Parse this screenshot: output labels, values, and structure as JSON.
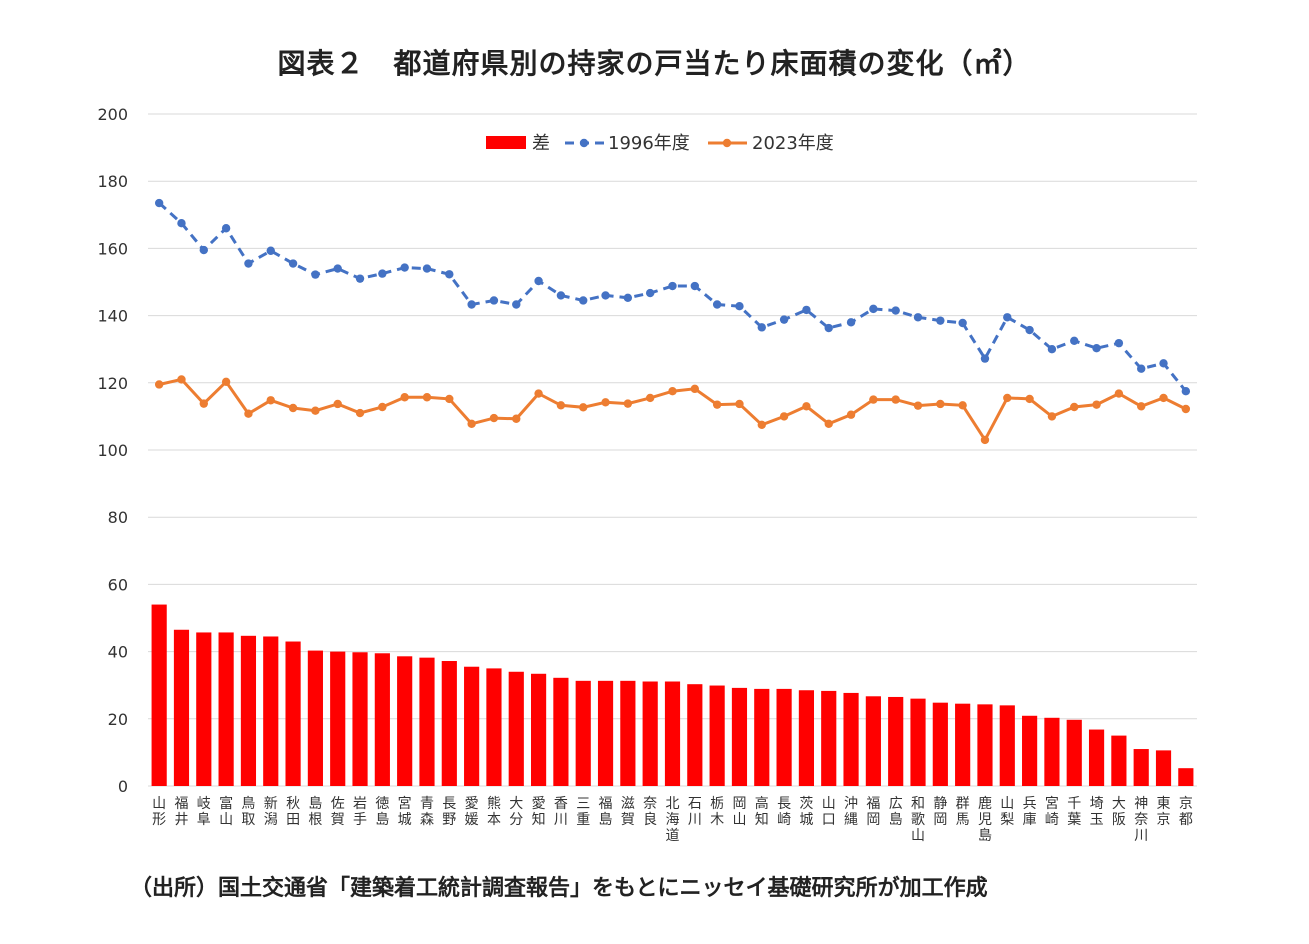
{
  "title": "図表２　都道府県別の持家の戸当たり床面積の変化（㎡）",
  "source": "（出所）国土交通省「建築着工統計調査報告」をもとにニッセイ基礎研究所が加工作成",
  "chart_data": {
    "type": "bar",
    "categories": [
      "山形",
      "福井",
      "岐阜",
      "富山",
      "鳥取",
      "新潟",
      "秋田",
      "島根",
      "佐賀",
      "岩手",
      "徳島",
      "宮城",
      "青森",
      "長野",
      "愛媛",
      "熊本",
      "大分",
      "愛知",
      "香川",
      "三重",
      "福島",
      "滋賀",
      "奈良",
      "北海道",
      "石川",
      "栃木",
      "岡山",
      "高知",
      "長崎",
      "茨城",
      "山口",
      "沖縄",
      "福岡",
      "広島",
      "和歌山",
      "静岡",
      "群馬",
      "鹿児島",
      "山梨",
      "兵庫",
      "宮崎",
      "千葉",
      "埼玉",
      "大阪",
      "神奈川",
      "東京",
      "京都"
    ],
    "series": [
      {
        "name": "差",
        "type": "bar",
        "color": "#ff0000",
        "values": [
          54,
          46.5,
          45.7,
          45.7,
          44.7,
          44.5,
          43,
          40.3,
          40,
          39.8,
          39.5,
          38.6,
          38.2,
          37.2,
          35.5,
          35,
          34,
          33.4,
          32.2,
          31.3,
          31.3,
          31.3,
          31.1,
          31.1,
          30.3,
          29.9,
          29.2,
          28.9,
          28.9,
          28.5,
          28.3,
          27.7,
          26.7,
          26.5,
          26,
          24.8,
          24.5,
          24.3,
          24,
          20.9,
          20.3,
          19.7,
          16.8,
          15,
          11,
          10.6,
          5.3
        ]
      },
      {
        "name": "1996年度",
        "type": "line",
        "style": "dashed",
        "color": "#4472c4",
        "values": [
          173.5,
          167.5,
          159.5,
          166,
          155.5,
          159.3,
          155.5,
          152.2,
          154,
          151,
          152.5,
          154.3,
          154,
          152.3,
          143.3,
          144.5,
          143.3,
          150.3,
          146,
          144.5,
          146,
          145.3,
          146.7,
          148.8,
          148.8,
          143.3,
          142.8,
          136.5,
          138.8,
          141.7,
          136.3,
          138,
          142,
          141.5,
          139.5,
          138.5,
          137.8,
          127.2,
          139.5,
          135.7,
          130,
          132.5,
          130.3,
          131.8,
          124.2,
          125.8,
          117.5
        ]
      },
      {
        "name": "2023年度",
        "type": "line",
        "style": "solid",
        "color": "#ed7d31",
        "values": [
          119.5,
          121,
          113.8,
          120.3,
          110.8,
          114.8,
          112.5,
          111.7,
          113.7,
          111,
          112.8,
          115.7,
          115.7,
          115.2,
          107.8,
          109.5,
          109.3,
          116.8,
          113.3,
          112.7,
          114.2,
          113.8,
          115.5,
          117.5,
          118.2,
          113.5,
          113.7,
          107.5,
          110,
          113,
          107.8,
          110.5,
          115,
          115,
          113.2,
          113.7,
          113.3,
          103,
          115.5,
          115.2,
          110,
          112.8,
          113.5,
          116.8,
          113,
          115.5,
          112.2
        ]
      }
    ],
    "xlabel": "",
    "ylabel": "",
    "ylim": [
      0,
      200
    ],
    "yticks": [
      "0",
      "20",
      "40",
      "60",
      "80",
      "100",
      "120",
      "140",
      "160",
      "180",
      "200"
    ],
    "grid": true,
    "legend_position": "top-center"
  }
}
